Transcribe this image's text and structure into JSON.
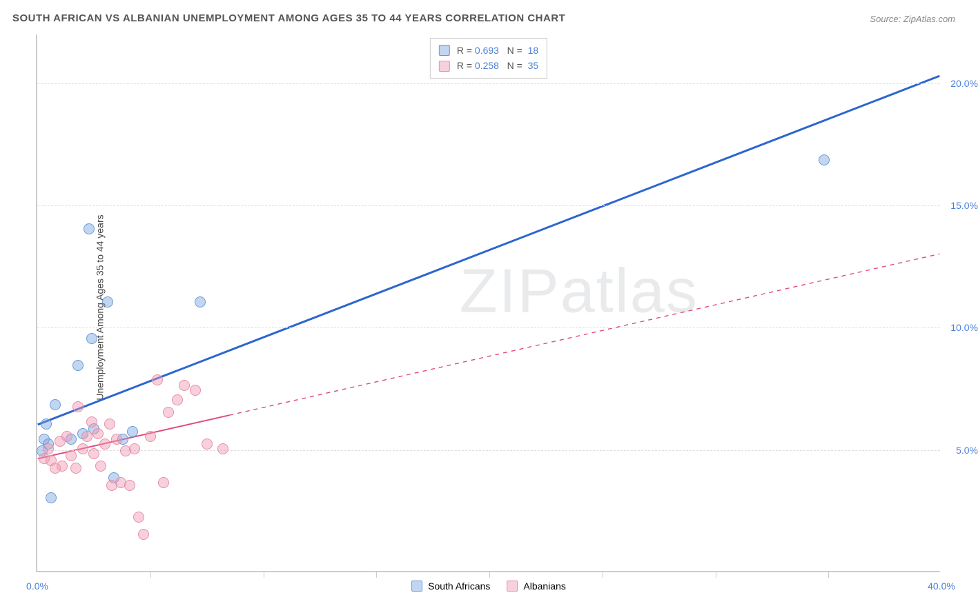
{
  "title": "SOUTH AFRICAN VS ALBANIAN UNEMPLOYMENT AMONG AGES 35 TO 44 YEARS CORRELATION CHART",
  "source": "Source: ZipAtlas.com",
  "ylabel": "Unemployment Among Ages 35 to 44 years",
  "watermark": "ZIPatlas",
  "chart": {
    "type": "scatter",
    "xlim": [
      0,
      40
    ],
    "ylim": [
      0,
      22
    ],
    "x_ticks": [
      0,
      40
    ],
    "x_tick_labels": [
      "0.0%",
      "40.0%"
    ],
    "x_minor_ticks": [
      5,
      10,
      15,
      20,
      25,
      30,
      35
    ],
    "y_gridlines": [
      5,
      10,
      15,
      20
    ],
    "y_tick_labels": [
      "5.0%",
      "10.0%",
      "15.0%",
      "20.0%"
    ],
    "background_color": "#ffffff",
    "grid_color": "#dddddd",
    "axis_color": "#cccccc",
    "series": [
      {
        "name": "South Africans",
        "color_fill": "rgba(120,165,225,0.45)",
        "color_stroke": "#6a9ad8",
        "R": "0.693",
        "N": "18",
        "trend": {
          "x1": 0,
          "y1": 6.0,
          "x2": 40,
          "y2": 20.3,
          "solid_to_x": 40,
          "color": "#2b66d0",
          "width": 3
        },
        "points": [
          [
            0.2,
            4.9
          ],
          [
            0.3,
            5.4
          ],
          [
            0.4,
            6.0
          ],
          [
            0.5,
            5.2
          ],
          [
            0.6,
            3.0
          ],
          [
            0.8,
            6.8
          ],
          [
            1.5,
            5.4
          ],
          [
            1.8,
            8.4
          ],
          [
            2.0,
            5.6
          ],
          [
            2.3,
            14.0
          ],
          [
            2.4,
            9.5
          ],
          [
            2.5,
            5.8
          ],
          [
            3.1,
            11.0
          ],
          [
            3.4,
            3.8
          ],
          [
            3.8,
            5.4
          ],
          [
            4.2,
            5.7
          ],
          [
            7.2,
            11.0
          ],
          [
            34.8,
            16.8
          ]
        ]
      },
      {
        "name": "Albanians",
        "color_fill": "rgba(240,150,175,0.45)",
        "color_stroke": "#e68faa",
        "R": "0.258",
        "N": "35",
        "trend": {
          "x1": 0,
          "y1": 4.6,
          "x2": 40,
          "y2": 13.0,
          "solid_to_x": 8.5,
          "color": "#e04a78",
          "width": 2
        },
        "points": [
          [
            0.3,
            4.6
          ],
          [
            0.5,
            5.0
          ],
          [
            0.6,
            4.5
          ],
          [
            0.8,
            4.2
          ],
          [
            1.0,
            5.3
          ],
          [
            1.1,
            4.3
          ],
          [
            1.3,
            5.5
          ],
          [
            1.5,
            4.7
          ],
          [
            1.7,
            4.2
          ],
          [
            1.8,
            6.7
          ],
          [
            2.0,
            5.0
          ],
          [
            2.2,
            5.5
          ],
          [
            2.4,
            6.1
          ],
          [
            2.5,
            4.8
          ],
          [
            2.7,
            5.6
          ],
          [
            2.8,
            4.3
          ],
          [
            3.0,
            5.2
          ],
          [
            3.2,
            6.0
          ],
          [
            3.3,
            3.5
          ],
          [
            3.5,
            5.4
          ],
          [
            3.7,
            3.6
          ],
          [
            3.9,
            4.9
          ],
          [
            4.1,
            3.5
          ],
          [
            4.3,
            5.0
          ],
          [
            4.5,
            2.2
          ],
          [
            4.7,
            1.5
          ],
          [
            5.0,
            5.5
          ],
          [
            5.3,
            7.8
          ],
          [
            5.6,
            3.6
          ],
          [
            5.8,
            6.5
          ],
          [
            6.2,
            7.0
          ],
          [
            6.5,
            7.6
          ],
          [
            7.0,
            7.4
          ],
          [
            7.5,
            5.2
          ],
          [
            8.2,
            5.0
          ]
        ]
      }
    ]
  },
  "legend_bottom": [
    {
      "label": "South Africans",
      "fill": "rgba(120,165,225,0.45)",
      "stroke": "#6a9ad8"
    },
    {
      "label": "Albanians",
      "fill": "rgba(240,150,175,0.45)",
      "stroke": "#e68faa"
    }
  ]
}
